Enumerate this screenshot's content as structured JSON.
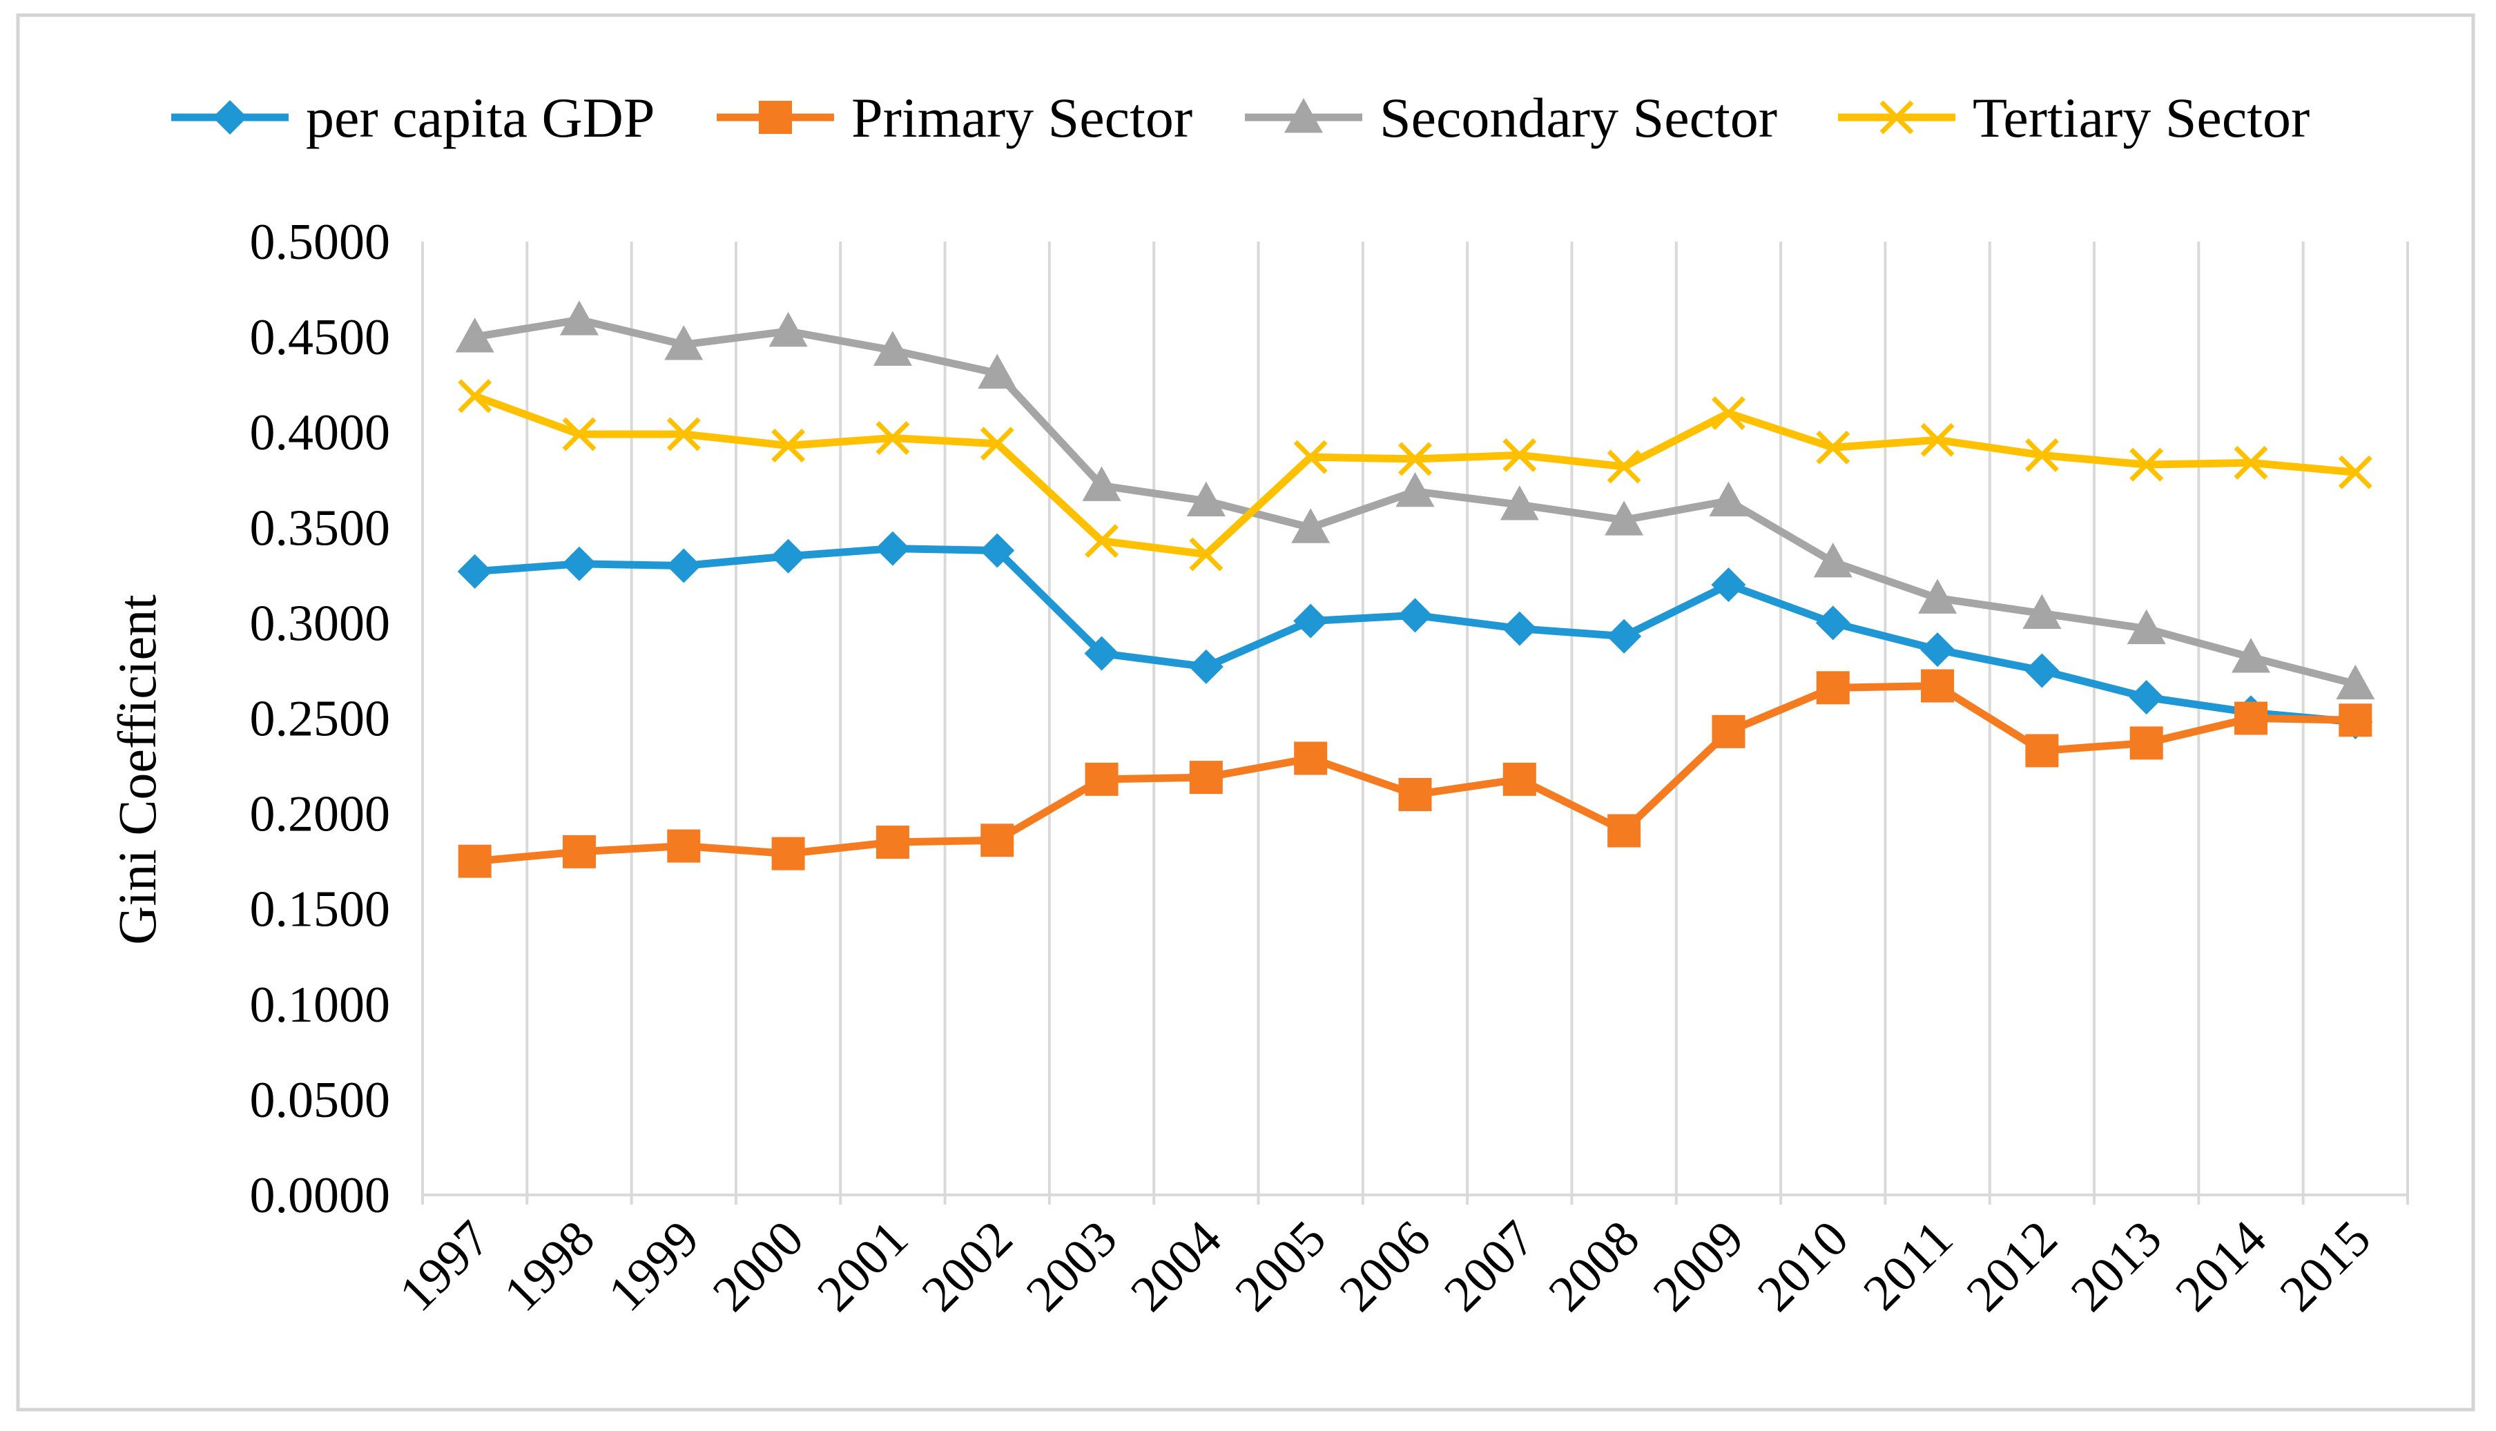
{
  "chart_data": {
    "type": "line",
    "title": "",
    "xlabel": "",
    "ylabel": "Gini Coefficient",
    "ylim": [
      0,
      0.5
    ],
    "yticks": [
      "0.0000",
      "0.0500",
      "0.1000",
      "0.1500",
      "0.2000",
      "0.2500",
      "0.3000",
      "0.3500",
      "0.4000",
      "0.4500",
      "0.5000"
    ],
    "grid": "vertical",
    "legend_position": "top",
    "categories": [
      "1997",
      "1998",
      "1999",
      "2000",
      "2001",
      "2002",
      "2003",
      "2004",
      "2005",
      "2006",
      "2007",
      "2008",
      "2009",
      "2010",
      "2011",
      "2012",
      "2013",
      "2014",
      "2015"
    ],
    "series": [
      {
        "name": "per capita GDP",
        "color": "#1f97d4",
        "marker": "diamond",
        "values": [
          0.327,
          0.331,
          0.33,
          0.335,
          0.339,
          0.338,
          0.284,
          0.277,
          0.301,
          0.304,
          0.297,
          0.293,
          0.32,
          0.3,
          0.286,
          0.275,
          0.261,
          0.253,
          0.248
        ]
      },
      {
        "name": "Primary Sector",
        "color": "#f47b20",
        "marker": "square",
        "values": [
          0.175,
          0.18,
          0.183,
          0.179,
          0.185,
          0.186,
          0.218,
          0.219,
          0.229,
          0.21,
          0.218,
          0.191,
          0.243,
          0.266,
          0.267,
          0.233,
          0.237,
          0.25,
          0.249
        ]
      },
      {
        "name": "Secondary Sector",
        "color": "#a5a5a5",
        "marker": "triangle",
        "values": [
          0.45,
          0.459,
          0.446,
          0.453,
          0.443,
          0.431,
          0.372,
          0.364,
          0.35,
          0.369,
          0.362,
          0.354,
          0.364,
          0.332,
          0.313,
          0.305,
          0.297,
          0.282,
          0.268
        ]
      },
      {
        "name": "Tertiary Sector",
        "color": "#ffc000",
        "marker": "x",
        "values": [
          0.419,
          0.399,
          0.399,
          0.393,
          0.397,
          0.394,
          0.343,
          0.336,
          0.387,
          0.386,
          0.388,
          0.382,
          0.41,
          0.392,
          0.396,
          0.388,
          0.383,
          0.384,
          0.379
        ]
      }
    ]
  }
}
